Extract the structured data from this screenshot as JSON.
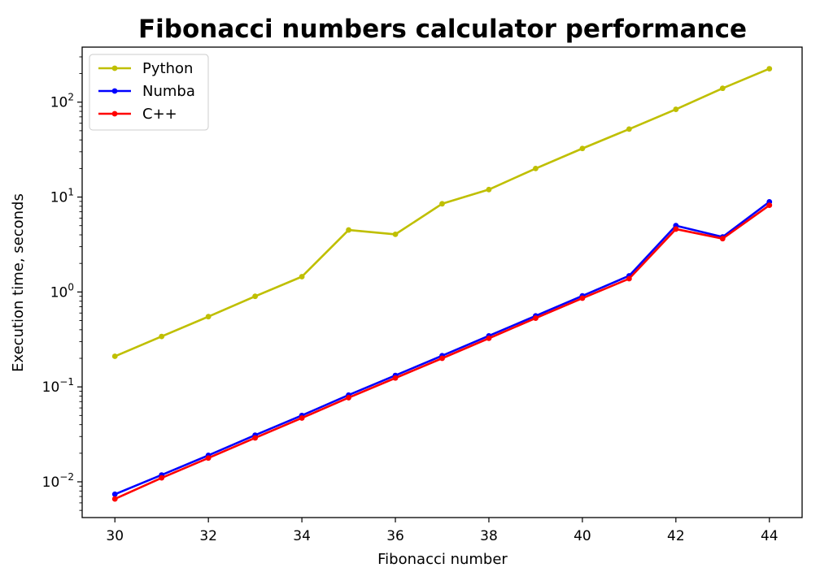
{
  "chart_data": {
    "type": "line",
    "title": "Fibonacci numbers calculator performance",
    "xlabel": "Fibonacci number",
    "ylabel": "Execution time, seconds",
    "yscale": "log",
    "xlim": [
      29.3,
      44.7
    ],
    "ylim": [
      0.0042,
      380
    ],
    "x_ticks": [
      30,
      32,
      34,
      36,
      38,
      40,
      42,
      44
    ],
    "y_ticks": [
      {
        "value": 0.01,
        "base": "10",
        "exp": "−2"
      },
      {
        "value": 0.1,
        "base": "10",
        "exp": "−1"
      },
      {
        "value": 1,
        "base": "10",
        "exp": "0"
      },
      {
        "value": 10,
        "base": "10",
        "exp": "1"
      },
      {
        "value": 100,
        "base": "10",
        "exp": "2"
      }
    ],
    "grid": false,
    "legend": "top-left",
    "x": [
      30,
      31,
      32,
      33,
      34,
      35,
      36,
      37,
      38,
      39,
      40,
      41,
      42,
      43,
      44
    ],
    "series": [
      {
        "name": "Python",
        "color": "#bfbf00",
        "values": [
          0.21,
          0.34,
          0.55,
          0.9,
          1.45,
          4.5,
          4.05,
          8.5,
          12.0,
          20.0,
          32.5,
          52.0,
          84.0,
          140.0,
          225.0
        ]
      },
      {
        "name": "Numba",
        "color": "#0000ff",
        "values": [
          0.0074,
          0.0118,
          0.019,
          0.031,
          0.05,
          0.082,
          0.132,
          0.213,
          0.345,
          0.56,
          0.91,
          1.48,
          5.0,
          3.8,
          8.9
        ]
      },
      {
        "name": "C++",
        "color": "#ff0000",
        "values": [
          0.0066,
          0.011,
          0.0178,
          0.029,
          0.047,
          0.077,
          0.124,
          0.2,
          0.325,
          0.53,
          0.86,
          1.38,
          4.6,
          3.65,
          8.2
        ]
      }
    ]
  }
}
